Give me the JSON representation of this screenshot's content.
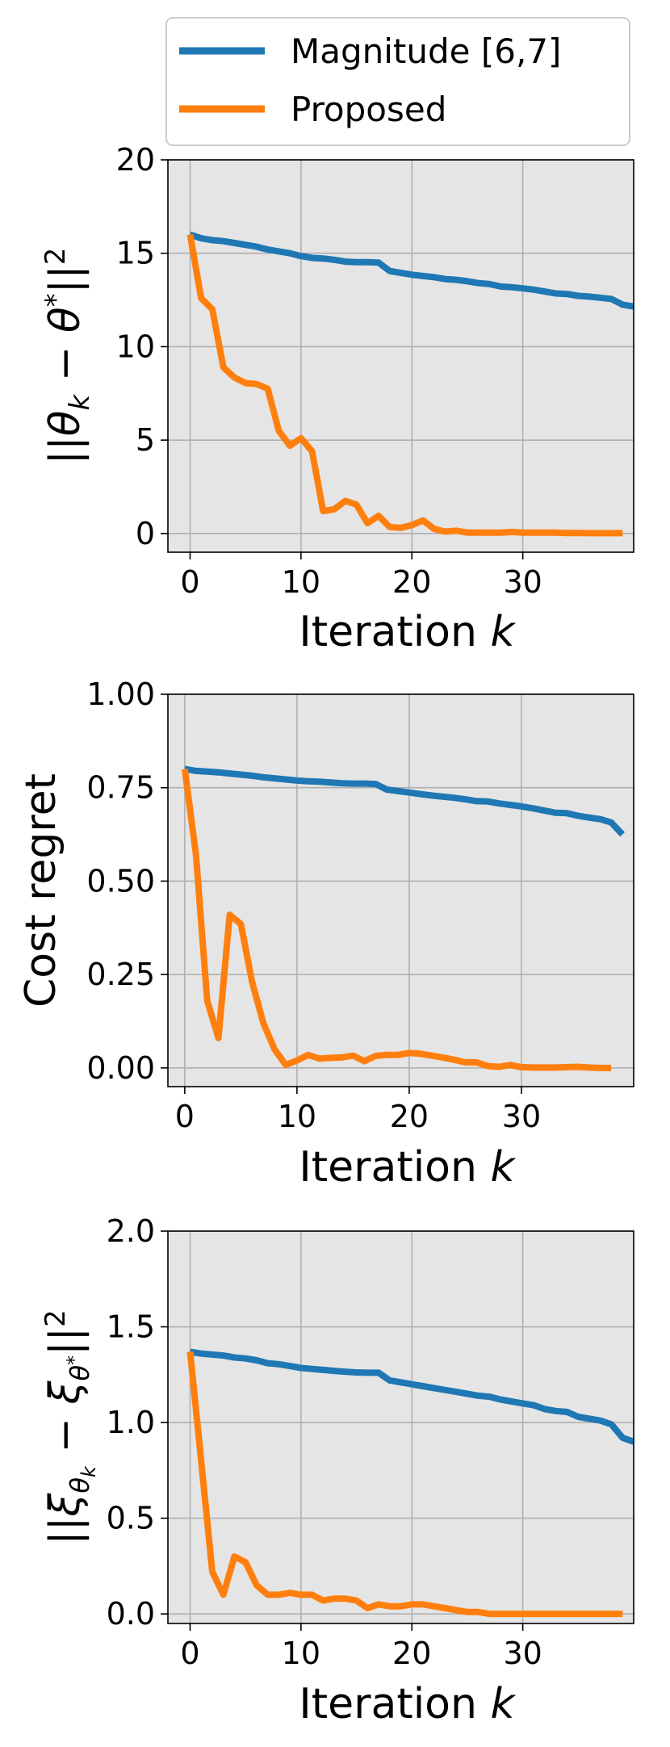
{
  "legend": {
    "location": "top",
    "entries": [
      {
        "label": "Magnitude  [6,7]",
        "color": "#1f77b4"
      },
      {
        "label": "Proposed",
        "color": "#ff7f0e"
      }
    ]
  },
  "chart_data": [
    {
      "type": "line",
      "title": "",
      "xlabel": "Iteration k",
      "ylabel": "||θk − θ*||²",
      "grid": true,
      "xlim": [
        -2,
        40
      ],
      "ylim": [
        -1,
        20
      ],
      "xticks": [
        0,
        10,
        20,
        30
      ],
      "xtick_labels": [
        "0",
        "10",
        "20",
        "30"
      ],
      "yticks": [
        0,
        5,
        10,
        15,
        20
      ],
      "ytick_labels": [
        "0",
        "5",
        "10",
        "15",
        "20"
      ],
      "series": [
        {
          "name": "Magnitude  [6,7]",
          "color": "#1f77b4",
          "x": [
            0,
            1,
            2,
            3,
            4,
            5,
            6,
            7,
            8,
            9,
            10,
            11,
            12,
            13,
            14,
            15,
            16,
            17,
            18,
            19,
            20,
            21,
            22,
            23,
            24,
            25,
            26,
            27,
            28,
            29,
            30,
            31,
            32,
            33,
            34,
            35,
            36,
            37,
            38,
            39,
            40
          ],
          "y": [
            16.0,
            15.8,
            15.7,
            15.65,
            15.55,
            15.45,
            15.35,
            15.2,
            15.1,
            15.0,
            14.85,
            14.75,
            14.72,
            14.65,
            14.55,
            14.52,
            14.52,
            14.5,
            14.05,
            13.95,
            13.85,
            13.78,
            13.72,
            13.62,
            13.58,
            13.5,
            13.4,
            13.35,
            13.22,
            13.18,
            13.12,
            13.05,
            12.95,
            12.85,
            12.82,
            12.72,
            12.68,
            12.62,
            12.55,
            12.25,
            12.15
          ]
        },
        {
          "name": "Proposed",
          "color": "#ff7f0e",
          "x": [
            0,
            1,
            2,
            3,
            4,
            5,
            6,
            7,
            8,
            9,
            10,
            11,
            12,
            13,
            14,
            15,
            16,
            17,
            18,
            19,
            20,
            21,
            22,
            23,
            24,
            25,
            26,
            27,
            28,
            29,
            30,
            31,
            32,
            33,
            34,
            35,
            36,
            37,
            38,
            39
          ],
          "y": [
            16.0,
            12.6,
            12.0,
            8.9,
            8.35,
            8.05,
            8.0,
            7.75,
            5.5,
            4.7,
            5.1,
            4.4,
            1.2,
            1.3,
            1.75,
            1.55,
            0.55,
            0.95,
            0.35,
            0.3,
            0.45,
            0.7,
            0.25,
            0.1,
            0.15,
            0.05,
            0.05,
            0.05,
            0.05,
            0.08,
            0.05,
            0.05,
            0.05,
            0.05,
            0.03,
            0.03,
            0.02,
            0.02,
            0.02,
            0.02
          ]
        }
      ]
    },
    {
      "type": "line",
      "title": "",
      "xlabel": "Iteration k",
      "ylabel": "Cost regret",
      "grid": true,
      "xlim": [
        -1.5,
        40
      ],
      "ylim": [
        -0.05,
        1.0
      ],
      "xticks": [
        0,
        10,
        20,
        30
      ],
      "xtick_labels": [
        "0",
        "10",
        "20",
        "30"
      ],
      "yticks": [
        0.0,
        0.25,
        0.5,
        0.75,
        1.0
      ],
      "ytick_labels": [
        "0.00",
        "0.25",
        "0.50",
        "0.75",
        "1.00"
      ],
      "series": [
        {
          "name": "Magnitude  [6,7]",
          "color": "#1f77b4",
          "x": [
            0,
            1,
            2,
            3,
            4,
            5,
            6,
            7,
            8,
            9,
            10,
            11,
            12,
            13,
            14,
            15,
            16,
            17,
            18,
            19,
            20,
            21,
            22,
            23,
            24,
            25,
            26,
            27,
            28,
            29,
            30,
            31,
            32,
            33,
            34,
            35,
            36,
            37,
            38,
            39
          ],
          "y": [
            0.8,
            0.795,
            0.793,
            0.791,
            0.788,
            0.785,
            0.782,
            0.778,
            0.775,
            0.772,
            0.769,
            0.767,
            0.766,
            0.764,
            0.762,
            0.761,
            0.761,
            0.76,
            0.745,
            0.741,
            0.737,
            0.733,
            0.729,
            0.726,
            0.723,
            0.719,
            0.714,
            0.713,
            0.708,
            0.704,
            0.7,
            0.695,
            0.689,
            0.683,
            0.682,
            0.675,
            0.67,
            0.666,
            0.657,
            0.625
          ]
        },
        {
          "name": "Proposed",
          "color": "#ff7f0e",
          "x": [
            0,
            1,
            2,
            3,
            4,
            5,
            6,
            7,
            8,
            9,
            10,
            11,
            12,
            13,
            14,
            15,
            16,
            17,
            18,
            19,
            20,
            21,
            22,
            23,
            24,
            25,
            26,
            27,
            28,
            29,
            30,
            31,
            32,
            33,
            34,
            35,
            36,
            37,
            38
          ],
          "y": [
            0.8,
            0.57,
            0.18,
            0.08,
            0.41,
            0.385,
            0.23,
            0.12,
            0.05,
            0.008,
            0.02,
            0.035,
            0.025,
            0.027,
            0.028,
            0.033,
            0.018,
            0.032,
            0.035,
            0.035,
            0.04,
            0.038,
            0.033,
            0.028,
            0.022,
            0.015,
            0.015,
            0.005,
            0.003,
            0.008,
            0.002,
            0.001,
            0.001,
            0.001,
            0.002,
            0.003,
            0.001,
            0.0,
            0.0
          ]
        }
      ]
    },
    {
      "type": "line",
      "title": "",
      "xlabel": "Iteration k",
      "ylabel": "||ξθk − ξθ*||²",
      "grid": true,
      "xlim": [
        -2,
        40
      ],
      "ylim": [
        -0.05,
        2.0
      ],
      "xticks": [
        0,
        10,
        20,
        30
      ],
      "xtick_labels": [
        "0",
        "10",
        "20",
        "30"
      ],
      "yticks": [
        0.0,
        0.5,
        1.0,
        1.5,
        2.0
      ],
      "ytick_labels": [
        "0.0",
        "0.5",
        "1.0",
        "1.5",
        "2.0"
      ],
      "series": [
        {
          "name": "Magnitude  [6,7]",
          "color": "#1f77b4",
          "x": [
            0,
            1,
            2,
            3,
            4,
            5,
            6,
            7,
            8,
            9,
            10,
            11,
            12,
            13,
            14,
            15,
            16,
            17,
            18,
            19,
            20,
            21,
            22,
            23,
            24,
            25,
            26,
            27,
            28,
            29,
            30,
            31,
            32,
            33,
            34,
            35,
            36,
            37,
            38,
            39,
            40
          ],
          "y": [
            1.37,
            1.36,
            1.355,
            1.35,
            1.34,
            1.335,
            1.325,
            1.31,
            1.305,
            1.295,
            1.285,
            1.28,
            1.275,
            1.27,
            1.265,
            1.262,
            1.26,
            1.26,
            1.22,
            1.21,
            1.2,
            1.19,
            1.18,
            1.17,
            1.16,
            1.15,
            1.14,
            1.135,
            1.12,
            1.11,
            1.1,
            1.09,
            1.07,
            1.06,
            1.055,
            1.03,
            1.02,
            1.01,
            0.99,
            0.92,
            0.9
          ]
        },
        {
          "name": "Proposed",
          "color": "#ff7f0e",
          "x": [
            0,
            1,
            2,
            3,
            4,
            5,
            6,
            7,
            8,
            9,
            10,
            11,
            12,
            13,
            14,
            15,
            16,
            17,
            18,
            19,
            20,
            21,
            22,
            23,
            24,
            25,
            26,
            27,
            28,
            29,
            30,
            31,
            32,
            33,
            34,
            35,
            36,
            37,
            38,
            39
          ],
          "y": [
            1.37,
            0.8,
            0.22,
            0.1,
            0.3,
            0.27,
            0.15,
            0.1,
            0.1,
            0.11,
            0.1,
            0.1,
            0.07,
            0.08,
            0.08,
            0.07,
            0.03,
            0.05,
            0.04,
            0.04,
            0.05,
            0.05,
            0.04,
            0.03,
            0.02,
            0.01,
            0.01,
            0.0,
            0.0,
            0.0,
            0.0,
            0.0,
            0.0,
            0.0,
            0.0,
            0.0,
            0.0,
            0.0,
            0.0,
            0.0
          ]
        }
      ]
    }
  ]
}
